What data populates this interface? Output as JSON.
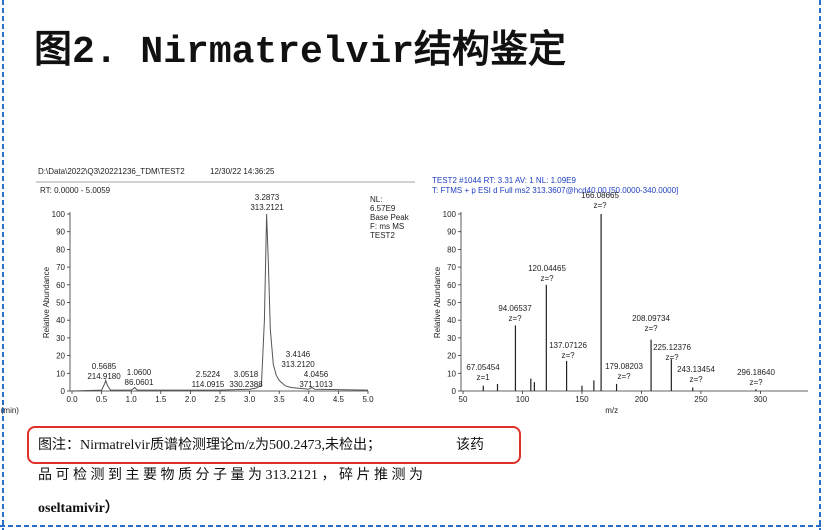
{
  "title": "图2. Nirmatrelvir结构鉴定",
  "chromatogram": {
    "type": "line",
    "file": "D:\\Data\\2022\\Q3\\20221236_TDM\\TEST2",
    "date": "12/30/22 14:36:25",
    "range": "RT: 0.0000 - 5.0059",
    "info": [
      "NL:",
      "6.57E9",
      "Base Peak",
      "F: ms  MS",
      "TEST2"
    ],
    "xlabel": "Time (min)",
    "ylabel": "Relative Abundance",
    "color": "#555555",
    "x": [
      0,
      0.5,
      0.55,
      0.57,
      0.6,
      0.65,
      1.0,
      1.06,
      1.1,
      2.5,
      3.0,
      3.1,
      3.2,
      3.25,
      3.2873,
      3.32,
      3.35,
      3.4,
      3.45,
      3.5,
      3.6,
      3.7,
      4.0,
      4.05,
      4.1,
      5.0
    ],
    "values": [
      0,
      0.5,
      4,
      6,
      3,
      0.5,
      0.5,
      2,
      0.5,
      0.5,
      1,
      1.5,
      3,
      40,
      100,
      70,
      35,
      15,
      9,
      6,
      3,
      2,
      1,
      2,
      1,
      0.5
    ],
    "xlim": [
      0,
      5
    ],
    "ylim": [
      0,
      100
    ],
    "xticks": [
      {
        "value": 0,
        "label": "0.0"
      },
      0.5,
      {
        "value": 1,
        "label": "1.0"
      },
      1.5,
      {
        "value": 2,
        "label": "2.0"
      },
      2.5,
      {
        "value": 3,
        "label": "3.0"
      },
      3.5,
      {
        "value": 4,
        "label": "4.0"
      },
      4.5,
      {
        "value": 5,
        "label": "5.0"
      }
    ],
    "yticks": [
      0,
      10,
      20,
      30,
      40,
      50,
      60,
      70,
      80,
      90,
      100
    ],
    "annotations": [
      [
        "3.2873",
        "313.2121"
      ],
      [
        "0.5685",
        "214.9180"
      ],
      [
        "1.0600",
        "86.0601"
      ],
      [
        "2.5224",
        "114.0915"
      ],
      [
        "3.0518",
        "330.2388"
      ],
      [
        "3.4146",
        "313.2120"
      ],
      [
        "4.0456",
        "371.1013"
      ]
    ]
  },
  "spectrum": {
    "type": "stick",
    "scan": "TEST2 #1044  RT: 3.31  AV: 1  NL: 1.09E9",
    "filter": "T: FTMS + p ESI d Full ms2 313.3607@hcd40.00 [50.0000-340.0000]",
    "xlabel": "m/z",
    "ylabel": "Relative Abundance",
    "color": "#222222",
    "x": [
      67.05454,
      79,
      94.06537,
      107,
      110,
      120.04465,
      137.07126,
      150,
      160,
      166.08665,
      179.08203,
      208.09734,
      225.12376,
      243.13454,
      296.1864
    ],
    "values": [
      3,
      4,
      37,
      7,
      5,
      60,
      17,
      3,
      6,
      100,
      4,
      29,
      18,
      2,
      1
    ],
    "xlim": [
      50,
      340
    ],
    "ylim": [
      0,
      100
    ],
    "xticks": [
      50,
      100,
      150,
      200,
      250,
      300
    ],
    "yticks": [
      0,
      10,
      20,
      30,
      40,
      50,
      60,
      70,
      80,
      90,
      100
    ],
    "annotations": [
      [
        "166.08665",
        "z=?"
      ],
      [
        "120.04465",
        "z=?"
      ],
      [
        "94.06537",
        "z=?"
      ],
      [
        "208.09734",
        "z=?"
      ],
      [
        "137.07126",
        "z=?"
      ],
      [
        "225.12376",
        "z=?"
      ],
      [
        "67.05454",
        "z=1"
      ],
      [
        "179.08203",
        "z=?"
      ],
      [
        "243.13454",
        "z=?"
      ],
      [
        "296.18640",
        "z=?"
      ]
    ]
  },
  "caption": [
    "图注：Nirmatrelvir质谱检测理论m/z为500.2473,未检出；",
    "该药",
    "品 可 检 测 到 主 要 物 质 分 子 量 为 313.2121 ， 碎 片 推 测 为",
    "oseltamivir）"
  ]
}
